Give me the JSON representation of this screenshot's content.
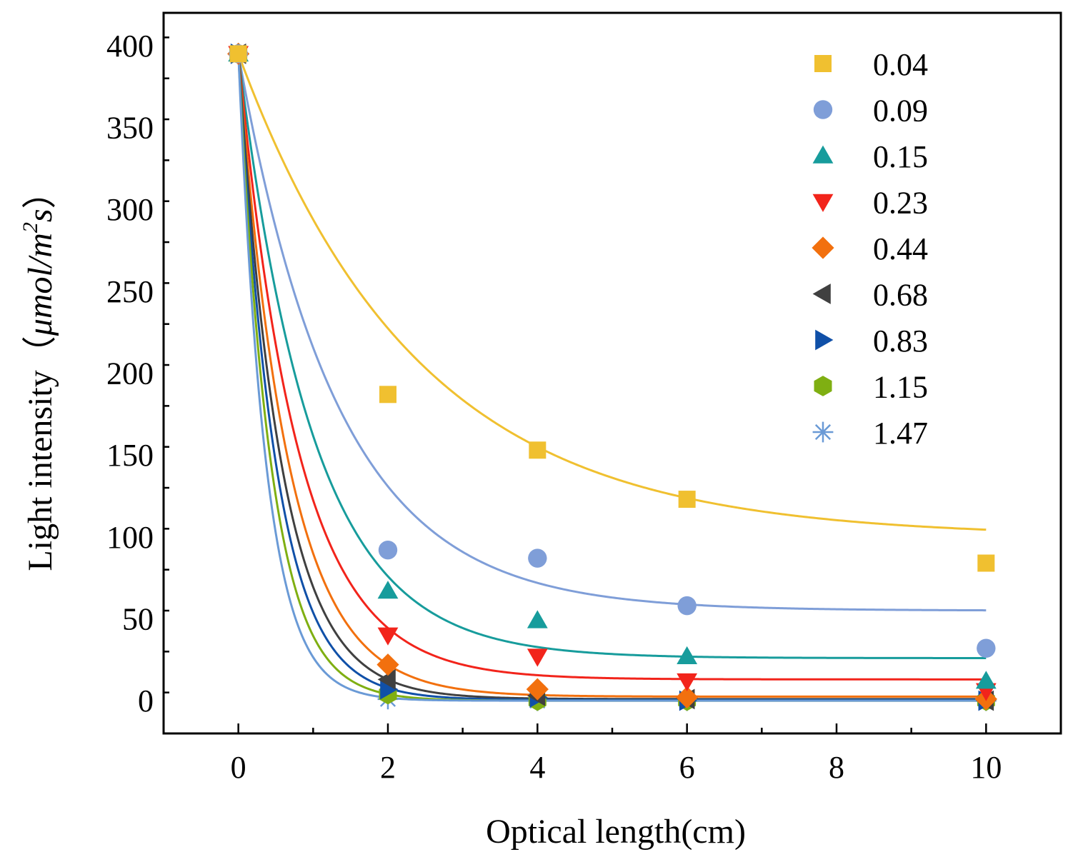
{
  "chart_data": {
    "type": "scatter",
    "title": "",
    "xlabel": "Optical length(cm)",
    "ylabel": "Light intensity（μmol/m²s）",
    "ylabel_main": "Light intensity",
    "ylabel_paren_open": "（",
    "ylabel_mu": "μmol/m",
    "ylabel_sup": "2",
    "ylabel_s": "s",
    "ylabel_paren_close": "）",
    "xlim": [
      -1,
      11
    ],
    "ylim": [
      -20,
      420
    ],
    "xticks": [
      0,
      2,
      4,
      6,
      8,
      10
    ],
    "yticks": [
      0,
      50,
      100,
      150,
      200,
      250,
      300,
      350,
      400
    ],
    "grid": false,
    "legend_position": "top-right",
    "x": [
      0,
      2,
      4,
      6,
      10
    ],
    "series": [
      {
        "name": "0.04",
        "marker": "square",
        "color": "#F0C030",
        "values": [
          395,
          187,
          153,
          123,
          84
        ],
        "fit": {
          "y0": 100,
          "A": 295,
          "k": 0.42
        }
      },
      {
        "name": "0.09",
        "marker": "circle",
        "color": "#7F9ED8",
        "values": [
          395,
          92,
          87,
          58,
          32
        ],
        "fit": {
          "y0": 55,
          "A": 340,
          "k": 0.75
        }
      },
      {
        "name": "0.15",
        "marker": "triangle-up",
        "color": "#179C9C",
        "values": [
          395,
          67,
          49,
          27,
          12
        ],
        "fit": {
          "y0": 26,
          "A": 369,
          "k": 1.0
        }
      },
      {
        "name": "0.23",
        "marker": "triangle-down",
        "color": "#F2241B",
        "values": [
          395,
          40,
          27,
          12,
          6
        ],
        "fit": {
          "y0": 13,
          "A": 382,
          "k": 1.25
        }
      },
      {
        "name": "0.44",
        "marker": "diamond",
        "color": "#F2700E",
        "values": [
          395,
          22,
          7,
          2,
          1
        ],
        "fit": {
          "y0": 2.5,
          "A": 392,
          "k": 1.5
        }
      },
      {
        "name": "0.68",
        "marker": "triangle-left",
        "color": "#404040",
        "values": [
          395,
          13,
          3,
          1,
          0
        ],
        "fit": {
          "y0": 1,
          "A": 394,
          "k": 1.75
        }
      },
      {
        "name": "0.83",
        "marker": "triangle-right",
        "color": "#1050A8",
        "values": [
          395,
          7,
          2,
          0,
          0
        ],
        "fit": {
          "y0": 0.5,
          "A": 394,
          "k": 2.0
        }
      },
      {
        "name": "1.15",
        "marker": "hexagon",
        "color": "#7FAF12",
        "values": [
          395,
          4,
          0,
          0,
          0
        ],
        "fit": {
          "y0": 0,
          "A": 395,
          "k": 2.3
        }
      },
      {
        "name": "1.47",
        "marker": "asterisk",
        "color": "#6A9AD6",
        "values": [
          395,
          1,
          0,
          0,
          0
        ],
        "fit": {
          "y0": 0,
          "A": 395,
          "k": 2.7
        }
      }
    ]
  }
}
